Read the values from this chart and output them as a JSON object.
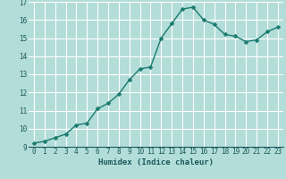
{
  "x": [
    0,
    1,
    2,
    3,
    4,
    5,
    6,
    7,
    8,
    9,
    10,
    11,
    12,
    13,
    14,
    15,
    16,
    17,
    18,
    19,
    20,
    21,
    22,
    23
  ],
  "y": [
    9.2,
    9.3,
    9.5,
    9.7,
    10.2,
    10.3,
    11.1,
    11.4,
    11.9,
    12.7,
    13.3,
    13.4,
    15.0,
    15.8,
    16.6,
    16.7,
    16.0,
    15.75,
    15.2,
    15.1,
    14.8,
    14.9,
    15.35,
    15.6
  ],
  "xlabel": "Humidex (Indice chaleur)",
  "ylim": [
    9,
    17
  ],
  "xlim": [
    -0.5,
    23.5
  ],
  "yticks": [
    9,
    10,
    11,
    12,
    13,
    14,
    15,
    16,
    17
  ],
  "xticks": [
    0,
    1,
    2,
    3,
    4,
    5,
    6,
    7,
    8,
    9,
    10,
    11,
    12,
    13,
    14,
    15,
    16,
    17,
    18,
    19,
    20,
    21,
    22,
    23
  ],
  "line_color": "#1a7a6e",
  "marker_color": "#1a7a6e",
  "bg_color": "#b2ddd8",
  "grid_color": "#ffffff",
  "label_color": "#1a5a5a",
  "tick_color": "#1a5a5a",
  "line_width": 1.0,
  "marker_size": 2.5,
  "label_fontsize": 6.5,
  "tick_fontsize": 5.5
}
